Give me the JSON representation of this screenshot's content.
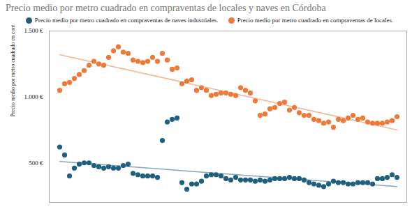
{
  "chart_data": {
    "type": "scatter",
    "title": "Precio medio por metro cuadrado en compraventas de locales y naves en Córdoba",
    "y_label": "Precio medio por metro cuadrado en compraventas de locales",
    "categories": [
      null,
      null,
      null,
      null,
      null,
      null,
      null,
      null,
      null,
      null,
      null,
      null,
      null,
      null,
      null,
      null,
      null,
      null,
      null,
      null,
      null,
      null,
      null,
      null,
      null,
      null,
      null,
      null,
      null,
      null,
      null,
      null,
      null,
      null,
      null,
      null,
      null,
      null,
      null,
      null,
      null,
      null,
      null,
      null,
      null,
      null,
      null,
      null,
      null,
      null,
      null,
      null,
      null,
      null,
      null,
      null,
      null,
      null,
      null,
      null,
      null,
      null,
      null,
      null,
      null,
      null,
      null,
      null,
      null,
      null
    ],
    "series": [
      {
        "name": "Precio medio por metro cuadrado en compraventas de naves industriales.",
        "color": "#1f5f7f",
        "marker": "circle",
        "values": [
          620,
          560,
          400,
          460,
          490,
          500,
          500,
          480,
          470,
          460,
          470,
          460,
          460,
          480,
          490,
          420,
          410,
          400,
          400,
          400,
          390,
          670,
          810,
          830,
          840,
          350,
          300,
          340,
          340,
          360,
          400,
          410,
          410,
          400,
          380,
          370,
          390,
          370,
          370,
          370,
          360,
          370,
          360,
          370,
          380,
          380,
          380,
          390,
          380,
          380,
          370,
          350,
          340,
          330,
          320,
          340,
          360,
          350,
          350,
          340,
          340,
          350,
          350,
          350,
          340,
          380,
          380,
          390,
          410,
          390
        ],
        "trend": [
          510,
          320
        ]
      },
      {
        "name": "Precio medio por metro cuadrado en compraventas de locales.",
        "color": "#ee7a3a",
        "marker": "circle",
        "values": [
          1050,
          1100,
          1110,
          1140,
          1170,
          1200,
          1240,
          1270,
          1250,
          1240,
          1300,
          1350,
          1380,
          1340,
          1330,
          1280,
          1270,
          1260,
          1270,
          1300,
          1270,
          1330,
          1280,
          1210,
          1220,
          1100,
          1120,
          1130,
          1050,
          1070,
          1050,
          1010,
          1020,
          1030,
          1030,
          1020,
          1010,
          1070,
          1050,
          1030,
          970,
          860,
          870,
          910,
          920,
          950,
          960,
          900,
          920,
          880,
          860,
          860,
          830,
          820,
          800,
          810,
          770,
          830,
          820,
          840,
          860,
          830,
          840,
          810,
          800,
          800,
          800,
          810,
          820,
          850
        ],
        "trend": [
          1320,
          750
        ]
      }
    ],
    "ylim": [
      200,
      1500
    ],
    "yticks": [
      {
        "value": 500,
        "label": "500 €"
      },
      {
        "value": 1000,
        "label": "1.000 €"
      },
      {
        "value": 1500,
        "label": "1.500 €"
      }
    ],
    "grid": false,
    "legend": "top",
    "tick_labels": "y"
  }
}
